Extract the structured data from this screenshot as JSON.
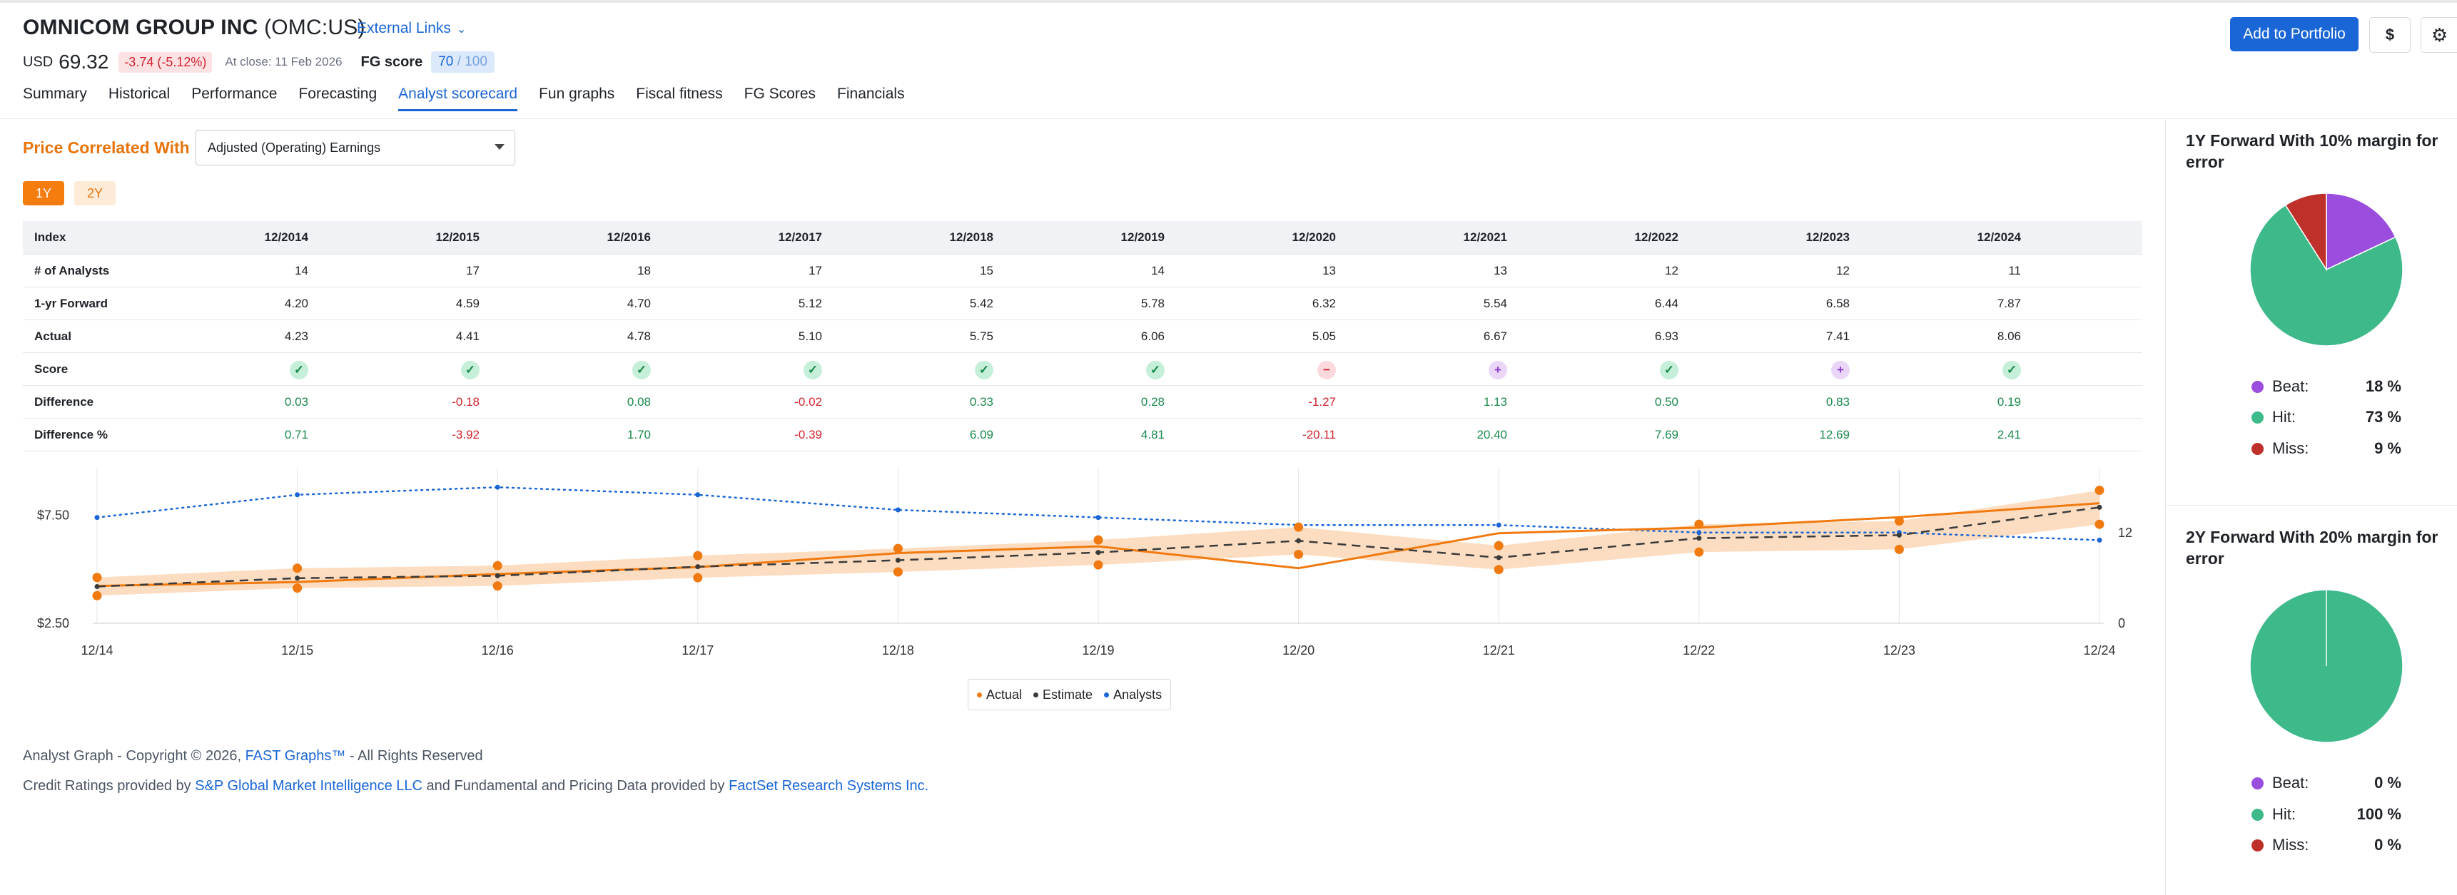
{
  "header": {
    "company": "OMNICOM GROUP INC",
    "ticker": "(OMC:US)",
    "external_links": "External Links",
    "currency": "USD",
    "price": "69.32",
    "change": "-3.74 (-5.12%)",
    "close": "At close: 11 Feb 2026",
    "fg_label": "FG score",
    "fg_value": "70",
    "fg_total": "/ 100",
    "add_to_portfolio": "Add to Portfolio",
    "dollar": "$"
  },
  "tabs": [
    "Summary",
    "Historical",
    "Performance",
    "Forecasting",
    "Analyst scorecard",
    "Fun graphs",
    "Fiscal fitness",
    "FG Scores",
    "Financials"
  ],
  "active_tab": "Analyst scorecard",
  "controls": {
    "price_correlated_with": "Price Correlated With",
    "selected_metric": "Adjusted (Operating) Earnings",
    "period_1y": "1Y",
    "period_2y": "2Y"
  },
  "table": {
    "index_label": "Index",
    "columns": [
      "12/2014",
      "12/2015",
      "12/2016",
      "12/2017",
      "12/2018",
      "12/2019",
      "12/2020",
      "12/2021",
      "12/2022",
      "12/2023",
      "12/2024"
    ],
    "rows": [
      {
        "label": "# of Analysts",
        "values": [
          "14",
          "17",
          "18",
          "17",
          "15",
          "14",
          "13",
          "13",
          "12",
          "12",
          "11"
        ]
      },
      {
        "label": "1-yr Forward",
        "values": [
          "4.20",
          "4.59",
          "4.70",
          "5.12",
          "5.42",
          "5.78",
          "6.32",
          "5.54",
          "6.44",
          "6.58",
          "7.87"
        ]
      },
      {
        "label": "Actual",
        "values": [
          "4.23",
          "4.41",
          "4.78",
          "5.10",
          "5.75",
          "6.06",
          "5.05",
          "6.67",
          "6.93",
          "7.41",
          "8.06"
        ]
      },
      {
        "label": "Score",
        "values": [
          "hit",
          "hit",
          "hit",
          "hit",
          "hit",
          "hit",
          "miss",
          "beat",
          "hit",
          "beat",
          "hit"
        ]
      },
      {
        "label": "Difference",
        "values": [
          "0.03",
          "-0.18",
          "0.08",
          "-0.02",
          "0.33",
          "0.28",
          "-1.27",
          "1.13",
          "0.50",
          "0.83",
          "0.19"
        ]
      },
      {
        "label": "Difference %",
        "values": [
          "0.71",
          "-3.92",
          "1.70",
          "-0.39",
          "6.09",
          "4.81",
          "-20.11",
          "20.40",
          "7.69",
          "12.69",
          "2.41"
        ]
      }
    ]
  },
  "chart_data": {
    "type": "line",
    "x": [
      "12/14",
      "12/15",
      "12/16",
      "12/17",
      "12/18",
      "12/19",
      "12/20",
      "12/21",
      "12/22",
      "12/23",
      "12/24"
    ],
    "left_axis": {
      "ticks": [
        "$7.50",
        "$2.50"
      ],
      "ylim": [
        2.5,
        9.5
      ]
    },
    "right_axis": {
      "ticks": [
        "12",
        "0"
      ],
      "ylim": [
        0,
        20
      ]
    },
    "series": [
      {
        "name": "Actual",
        "color": "#f07a10",
        "values": [
          4.23,
          4.41,
          4.78,
          5.1,
          5.75,
          6.06,
          5.05,
          6.67,
          6.93,
          7.41,
          8.06
        ]
      },
      {
        "name": "Estimate",
        "color": "#3a3a3a",
        "values": [
          4.2,
          4.59,
          4.7,
          5.12,
          5.42,
          5.78,
          6.32,
          5.54,
          6.44,
          6.58,
          7.87
        ]
      },
      {
        "name": "Analysts",
        "color": "#1a66d6",
        "axis": "right",
        "values": [
          14,
          17,
          18,
          17,
          15,
          14,
          13,
          13,
          12,
          12,
          11
        ]
      }
    ],
    "band_margin": 0.1,
    "legend_position": "bottom-center",
    "grid": true
  },
  "footer": {
    "copyright_pre": "Analyst Graph - Copyright © 2026,",
    "fast_graphs": "FAST Graphs™",
    "copyright_post": "- All Rights Reserved",
    "credit_pre": "Credit Ratings provided by",
    "sp_link": "S&P Global Market Intelligence LLC",
    "credit_mid": "and Fundamental and Pricing Data provided by",
    "factset_link": "FactSet Research Systems Inc."
  },
  "panels": [
    {
      "title": "1Y Forward With 10% margin for error",
      "stats": [
        {
          "label": "Beat:",
          "value": "18 %",
          "pct": 18,
          "color": "#9b4dde"
        },
        {
          "label": "Hit:",
          "value": "73 %",
          "pct": 73,
          "color": "#3db98a"
        },
        {
          "label": "Miss:",
          "value": "9 %",
          "pct": 9,
          "color": "#c0302a"
        }
      ]
    },
    {
      "title": "2Y Forward With 20% margin for error",
      "stats": [
        {
          "label": "Beat:",
          "value": "0 %",
          "pct": 0,
          "color": "#9b4dde"
        },
        {
          "label": "Hit:",
          "value": "100 %",
          "pct": 100,
          "color": "#3db98a"
        },
        {
          "label": "Miss:",
          "value": "0 %",
          "pct": 0,
          "color": "#c0302a"
        }
      ]
    }
  ]
}
